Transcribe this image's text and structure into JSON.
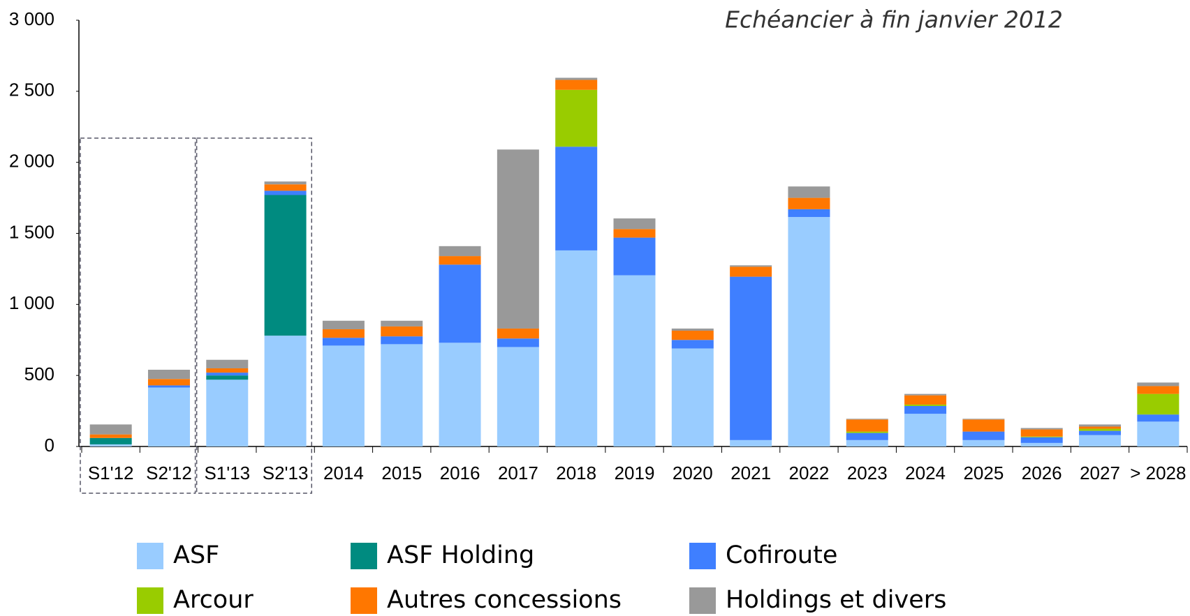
{
  "chart_data": {
    "type": "stacked_bar",
    "annotation": "Echéancier à fin janvier 2012",
    "categories": [
      "S1'12",
      "S2'12",
      "S1'13",
      "S2'13",
      "2014",
      "2015",
      "2016",
      "2017",
      "2018",
      "2019",
      "2020",
      "2021",
      "2022",
      "2023",
      "2024",
      "2025",
      "2026",
      "2027",
      "> 2028"
    ],
    "series": [
      {
        "name": "ASF",
        "color": "#99ccff",
        "values": [
          15,
          415,
          470,
          780,
          710,
          720,
          730,
          700,
          1380,
          1205,
          690,
          45,
          1615,
          45,
          230,
          45,
          25,
          80,
          175
        ]
      },
      {
        "name": "ASF Holding",
        "color": "#008b80",
        "values": [
          45,
          0,
          30,
          990,
          0,
          0,
          0,
          0,
          0,
          0,
          0,
          0,
          0,
          0,
          0,
          0,
          0,
          0,
          0
        ]
      },
      {
        "name": "Cofiroute",
        "color": "#3f7fff",
        "values": [
          0,
          15,
          20,
          30,
          55,
          55,
          550,
          60,
          730,
          265,
          60,
          1150,
          55,
          50,
          55,
          60,
          40,
          30,
          50
        ]
      },
      {
        "name": "Arcour",
        "color": "#99cc00",
        "values": [
          0,
          0,
          0,
          0,
          0,
          0,
          0,
          0,
          400,
          0,
          0,
          0,
          0,
          10,
          10,
          0,
          5,
          15,
          145
        ]
      },
      {
        "name": "Autres concessions",
        "color": "#ff7700",
        "values": [
          25,
          45,
          30,
          45,
          60,
          70,
          60,
          70,
          70,
          60,
          65,
          70,
          80,
          85,
          65,
          85,
          50,
          15,
          55
        ]
      },
      {
        "name": "Holdings et divers",
        "color": "#999999",
        "values": [
          70,
          65,
          60,
          20,
          60,
          40,
          70,
          1260,
          15,
          75,
          15,
          10,
          80,
          5,
          10,
          5,
          10,
          15,
          25
        ]
      }
    ],
    "ylim": [
      0,
      3000
    ],
    "yticks": [
      0,
      500,
      {
        "value": 1000,
        "label": "1 000"
      },
      {
        "value": 1500,
        "label": "1 500"
      },
      {
        "value": 2000,
        "label": "2 000"
      },
      {
        "value": 2500,
        "label": "2 500"
      },
      {
        "value": 3000,
        "label": "3 000"
      }
    ]
  }
}
